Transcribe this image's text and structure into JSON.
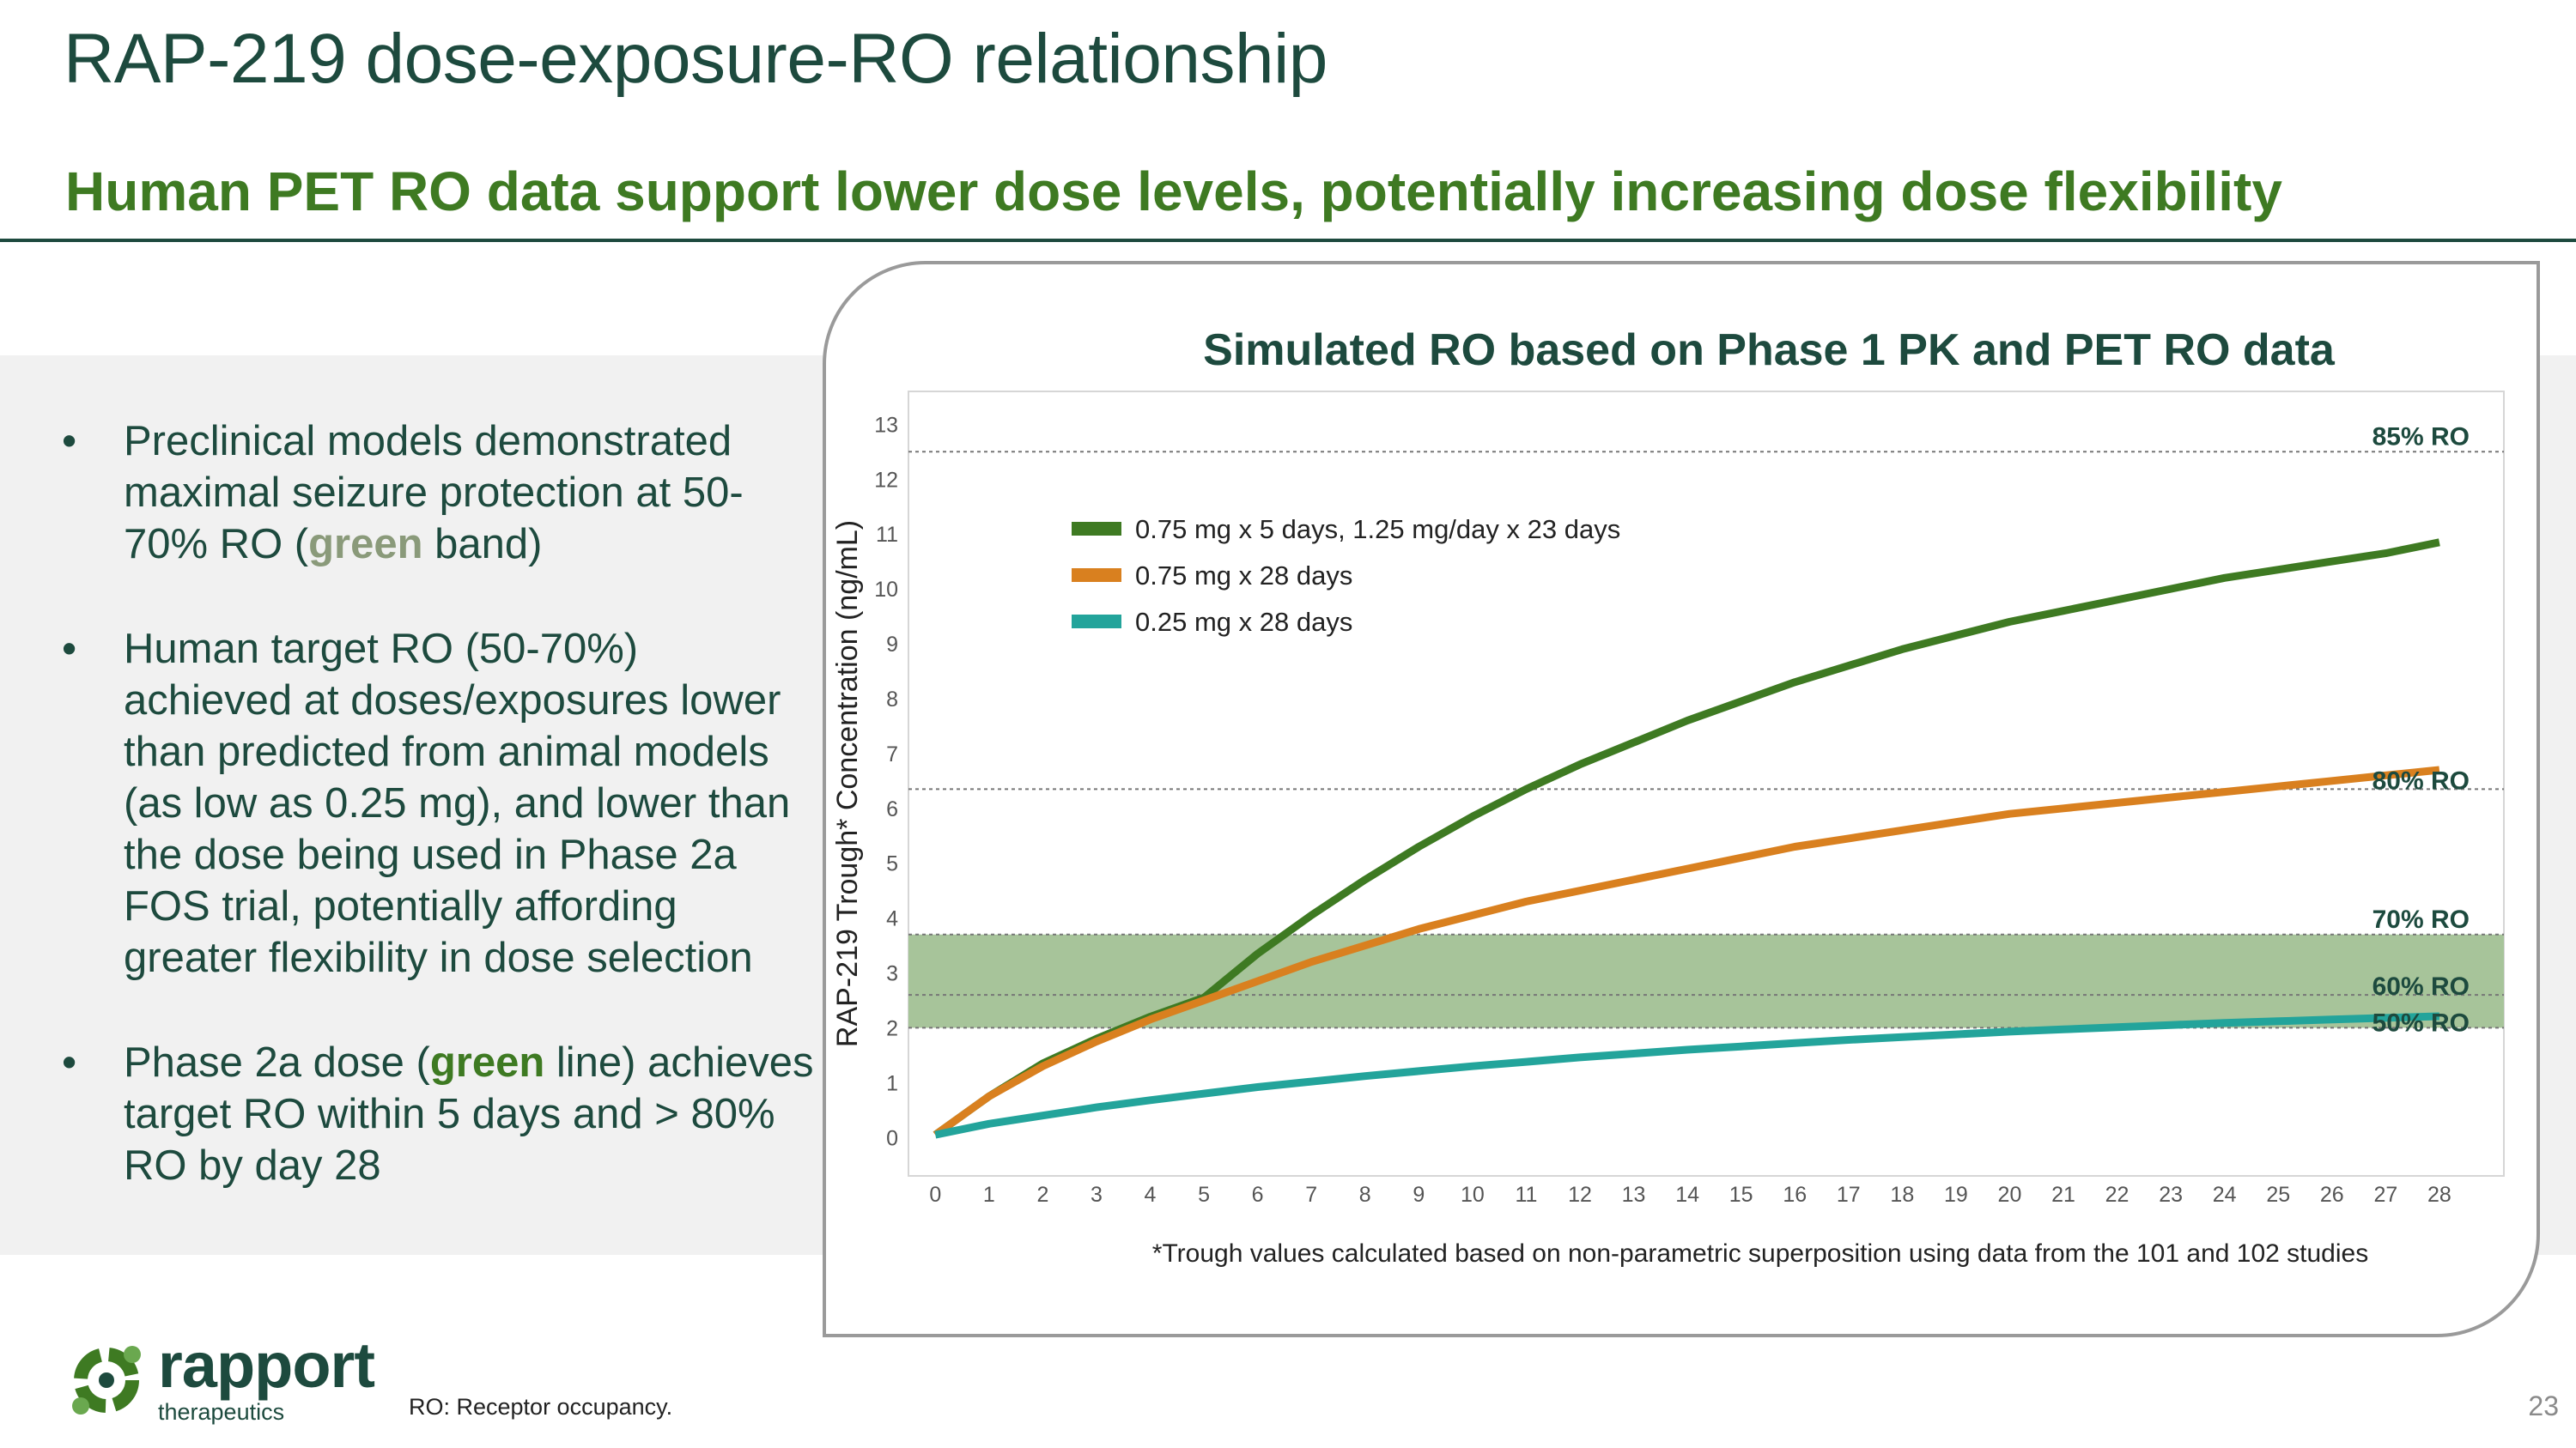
{
  "slide": {
    "title": "RAP-219 dose-exposure-RO relationship",
    "subtitle": "Human PET RO data support lower dose levels, potentially increasing dose flexibility",
    "page_number": "23",
    "footer_note": "RO: Receptor occupancy."
  },
  "logo": {
    "name": "rapport",
    "tagline": "therapeutics",
    "icon": "rapport-logo-icon"
  },
  "bullets": [
    {
      "before": "Preclinical models demonstrated maximal seizure protection at 50-70% RO (",
      "highlight": "green",
      "after": " band)"
    },
    {
      "text": "Human target RO (50-70%) achieved at doses/exposures lower than predicted from animal models (as low as 0.25 mg), and lower than the dose being used in Phase 2a FOS trial, potentially affording greater flexibility in dose selection"
    },
    {
      "before": "Phase 2a dose (",
      "highlight": "green",
      "after": " line) achieves target RO within 5 days and > 80% RO by day 28"
    }
  ],
  "chart_footnote": "*Trough values calculated based on non-parametric superposition using data from the 101 and 102 studies",
  "colors": {
    "dark_green": "#1d4a3e",
    "accent_green": "#3e7a22",
    "band_green": "#a7c49a",
    "orange": "#d9801f",
    "teal": "#23a49b"
  },
  "chart_data": {
    "type": "line",
    "title": "Simulated RO based on Phase 1 PK and PET RO data",
    "xlabel": "",
    "ylabel": "RAP-219 Trough* Concentration (ng/mL)",
    "xlim": [
      -0.5,
      29.2
    ],
    "ylim": [
      -0.7,
      13.6
    ],
    "x_ticks": [
      0,
      1,
      2,
      3,
      4,
      5,
      6,
      7,
      8,
      9,
      10,
      11,
      12,
      13,
      14,
      15,
      16,
      17,
      18,
      19,
      20,
      21,
      22,
      23,
      24,
      25,
      26,
      27,
      28
    ],
    "y_ticks": [
      0,
      1,
      2,
      3,
      4,
      5,
      6,
      7,
      8,
      9,
      10,
      11,
      12,
      13
    ],
    "legend_position": "top-left",
    "band": {
      "from": 2.0,
      "to": 3.7,
      "label": "50-70% RO target band"
    },
    "reference_lines": [
      {
        "label": "85% RO",
        "y": 12.5
      },
      {
        "label": "80% RO",
        "y": 6.35
      },
      {
        "label": "70% RO",
        "y": 3.7
      },
      {
        "label": "60% RO",
        "y": 2.6
      },
      {
        "label": "50% RO",
        "y": 2.0
      }
    ],
    "series": [
      {
        "name": "0.75 mg x 5 days, 1.25 mg/day x 23 days",
        "color": "#3e7a22",
        "x": [
          0,
          1,
          2,
          3,
          4,
          5,
          6,
          7,
          8,
          9,
          10,
          11,
          12,
          13,
          14,
          15,
          16,
          17,
          18,
          19,
          20,
          21,
          22,
          23,
          24,
          25,
          26,
          27,
          28
        ],
        "values": [
          0.05,
          0.75,
          1.35,
          1.8,
          2.2,
          2.55,
          3.35,
          4.05,
          4.7,
          5.3,
          5.85,
          6.35,
          6.8,
          7.2,
          7.6,
          7.95,
          8.3,
          8.6,
          8.9,
          9.15,
          9.4,
          9.6,
          9.8,
          10.0,
          10.2,
          10.35,
          10.5,
          10.65,
          10.85
        ]
      },
      {
        "name": "0.75 mg x 28 days",
        "color": "#d9801f",
        "x": [
          0,
          1,
          2,
          3,
          4,
          5,
          6,
          7,
          8,
          9,
          10,
          11,
          12,
          13,
          14,
          15,
          16,
          17,
          18,
          19,
          20,
          21,
          22,
          23,
          24,
          25,
          26,
          27,
          28
        ],
        "values": [
          0.05,
          0.75,
          1.3,
          1.75,
          2.15,
          2.5,
          2.85,
          3.2,
          3.5,
          3.8,
          4.05,
          4.3,
          4.5,
          4.7,
          4.9,
          5.1,
          5.3,
          5.45,
          5.6,
          5.75,
          5.9,
          6.0,
          6.1,
          6.2,
          6.3,
          6.4,
          6.5,
          6.6,
          6.7
        ]
      },
      {
        "name": "0.25 mg x 28 days",
        "color": "#23a49b",
        "x": [
          0,
          1,
          2,
          3,
          4,
          5,
          6,
          7,
          8,
          9,
          10,
          11,
          12,
          13,
          14,
          15,
          16,
          17,
          18,
          19,
          20,
          21,
          22,
          23,
          24,
          25,
          26,
          27,
          28
        ],
        "values": [
          0.05,
          0.25,
          0.4,
          0.55,
          0.68,
          0.8,
          0.92,
          1.02,
          1.12,
          1.21,
          1.3,
          1.38,
          1.46,
          1.53,
          1.6,
          1.66,
          1.72,
          1.78,
          1.83,
          1.88,
          1.93,
          1.97,
          2.01,
          2.05,
          2.09,
          2.12,
          2.15,
          2.18,
          2.21
        ]
      }
    ]
  }
}
